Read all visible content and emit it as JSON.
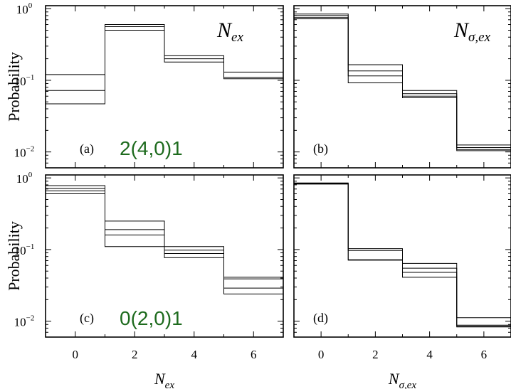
{
  "chart_data": [
    {
      "type": "step",
      "panel": "(a)",
      "annotation": "2(4,0)1",
      "variable_label": "N",
      "variable_sub": "ex",
      "ylabel": "Probability",
      "xlabel": "",
      "yscale": "log",
      "ylim": [
        0.006,
        1.1
      ],
      "xlim": [
        -1,
        7
      ],
      "bins": [
        [
          -1,
          1
        ],
        [
          1,
          3
        ],
        [
          3,
          5
        ],
        [
          5,
          7
        ]
      ],
      "series": [
        {
          "values": [
            0.12,
            0.6,
            0.22,
            0.13
          ]
        },
        {
          "values": [
            0.072,
            0.56,
            0.2,
            0.11
          ]
        },
        {
          "values": [
            0.047,
            0.5,
            0.18,
            0.105
          ]
        }
      ]
    },
    {
      "type": "step",
      "panel": "(b)",
      "variable_label": "N",
      "variable_sub": "σ,ex",
      "ylabel": "",
      "xlabel": "",
      "yscale": "log",
      "ylim": [
        0.006,
        1.1
      ],
      "xlim": [
        -1,
        7
      ],
      "bins": [
        [
          -1,
          1
        ],
        [
          1,
          3
        ],
        [
          3,
          5
        ],
        [
          5,
          7
        ]
      ],
      "series": [
        {
          "values": [
            0.84,
            0.165,
            0.072,
            0.0125
          ]
        },
        {
          "values": [
            0.8,
            0.135,
            0.065,
            0.0115
          ]
        },
        {
          "values": [
            0.75,
            0.115,
            0.06,
            0.0108
          ]
        },
        {
          "values": [
            0.72,
            0.092,
            0.057,
            0.0104
          ]
        }
      ]
    },
    {
      "type": "step",
      "panel": "(c)",
      "annotation": "0(2,0)1",
      "ylabel": "Probability",
      "xlabel": "N",
      "xlabel_sub": "ex",
      "yscale": "log",
      "ylim": [
        0.006,
        1.1
      ],
      "xlim": [
        -1,
        7
      ],
      "xticks": [
        0,
        2,
        4,
        6
      ],
      "bins": [
        [
          -1,
          1
        ],
        [
          1,
          3
        ],
        [
          3,
          5
        ],
        [
          5,
          7
        ]
      ],
      "series": [
        {
          "values": [
            0.78,
            0.25,
            0.11,
            0.041
          ]
        },
        {
          "values": [
            0.71,
            0.19,
            0.098,
            0.039
          ]
        },
        {
          "values": [
            0.66,
            0.16,
            0.088,
            0.029
          ]
        },
        {
          "values": [
            0.6,
            0.11,
            0.077,
            0.024
          ]
        }
      ]
    },
    {
      "type": "step",
      "panel": "(d)",
      "ylabel": "",
      "xlabel": "N",
      "xlabel_sub": "σ,ex",
      "yscale": "log",
      "ylim": [
        0.006,
        1.1
      ],
      "xlim": [
        -1,
        7
      ],
      "xticks": [
        0,
        2,
        4,
        6
      ],
      "bins": [
        [
          -1,
          1
        ],
        [
          1,
          3
        ],
        [
          3,
          5
        ],
        [
          5,
          7
        ]
      ],
      "series": [
        {
          "values": [
            0.85,
            0.103,
            0.064,
            0.0112
          ]
        },
        {
          "values": [
            0.84,
            0.097,
            0.055,
            0.0088
          ]
        },
        {
          "values": [
            0.83,
            0.072,
            0.048,
            0.0085
          ]
        },
        {
          "values": [
            0.82,
            0.071,
            0.041,
            0.0083
          ]
        }
      ]
    }
  ],
  "ytick_base": "10",
  "ytick_exponents": [
    "0",
    "−1",
    "−2"
  ],
  "colors": {
    "annotation": "#1e6b1e",
    "lines": "#000000"
  }
}
